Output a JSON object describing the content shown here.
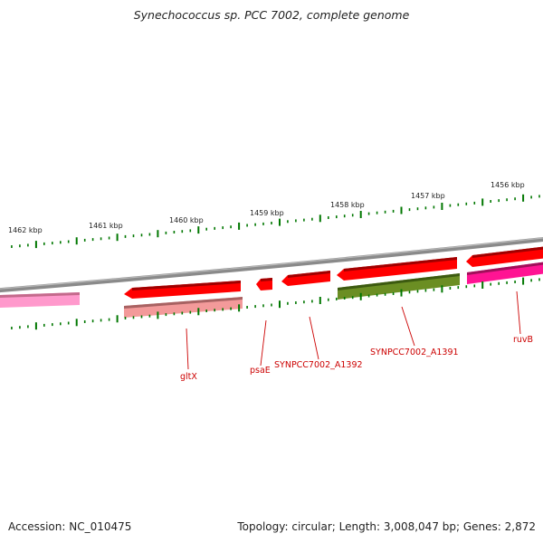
{
  "title": "Synechococcus sp. PCC 7002, complete genome",
  "ticks": [
    "1462 kbp",
    "1461 kbp",
    "1460 kbp",
    "1459 kbp",
    "1458 kbp",
    "1457 kbp",
    "1456 kbp"
  ],
  "genes": {
    "gltX": "gltX",
    "psaE": "psaE",
    "a1392": "SYNPCC7002_A1392",
    "a1391": "SYNPCC7002_A1391",
    "ruvB": "ruvB"
  },
  "footer": {
    "accession": "Accession: NC_010475",
    "stats": "Topology: circular; Length: 3,008,047 bp; Genes: 2,872"
  },
  "colors": {
    "backbone": "#808080",
    "cds": "#ff0000",
    "cds_light": "#f08080",
    "olive": "#6b8e23",
    "pink": "#ff69b4",
    "magenta": "#ff1493",
    "tick": "#007700",
    "label": "#cc0000"
  }
}
